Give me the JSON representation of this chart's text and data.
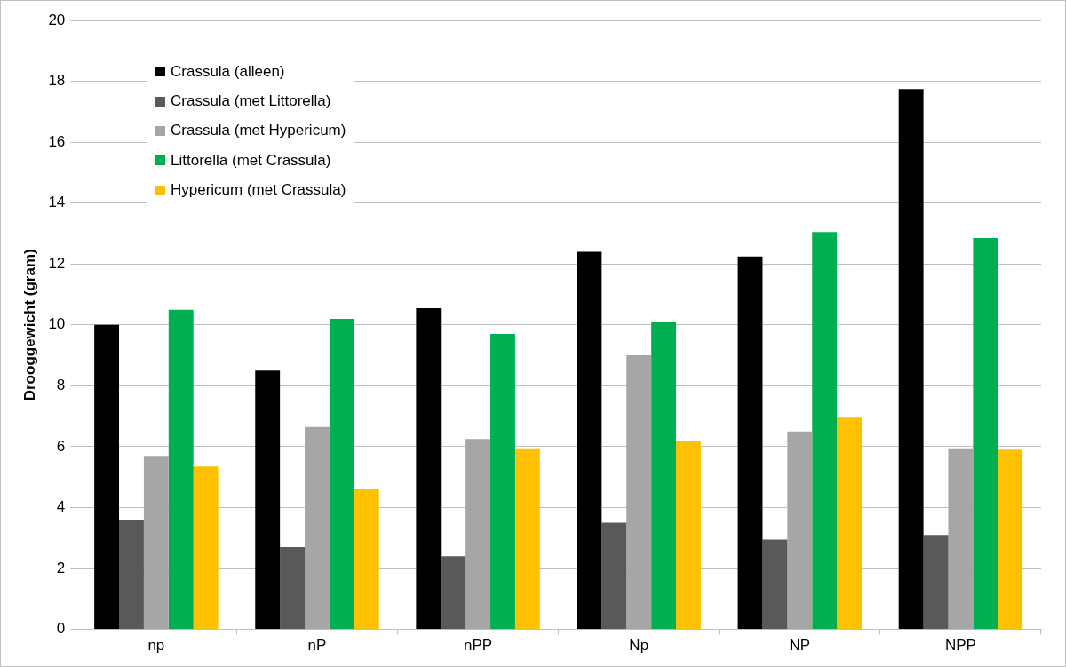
{
  "chart_data": {
    "type": "bar",
    "ylabel": "Drooggewicht (gram)",
    "categories": [
      "np",
      "nP",
      "nPP",
      "Np",
      "NP",
      "NPP"
    ],
    "series": [
      {
        "name": "Crassula (alleen)",
        "color": "#000000",
        "values": [
          10.0,
          8.5,
          10.55,
          12.4,
          12.25,
          17.75
        ]
      },
      {
        "name": "Crassula (met Littorella)",
        "color": "#595959",
        "values": [
          3.6,
          2.7,
          2.4,
          3.5,
          2.95,
          3.1
        ]
      },
      {
        "name": "Crassula (met Hypericum)",
        "color": "#a6a6a6",
        "values": [
          5.7,
          6.65,
          6.25,
          9.0,
          6.5,
          5.95
        ]
      },
      {
        "name": "Littorella (met Crassula)",
        "color": "#00b050",
        "values": [
          10.5,
          10.2,
          9.7,
          10.1,
          13.05,
          12.85
        ]
      },
      {
        "name": "Hypericum (met Crassula)",
        "color": "#ffc000",
        "values": [
          5.35,
          4.6,
          5.95,
          6.2,
          6.95,
          5.9
        ]
      }
    ],
    "ylim": [
      0,
      20
    ],
    "yticks": [
      0,
      2,
      4,
      6,
      8,
      10,
      12,
      14,
      16,
      18,
      20
    ],
    "grid": "y",
    "legend": "top left"
  }
}
